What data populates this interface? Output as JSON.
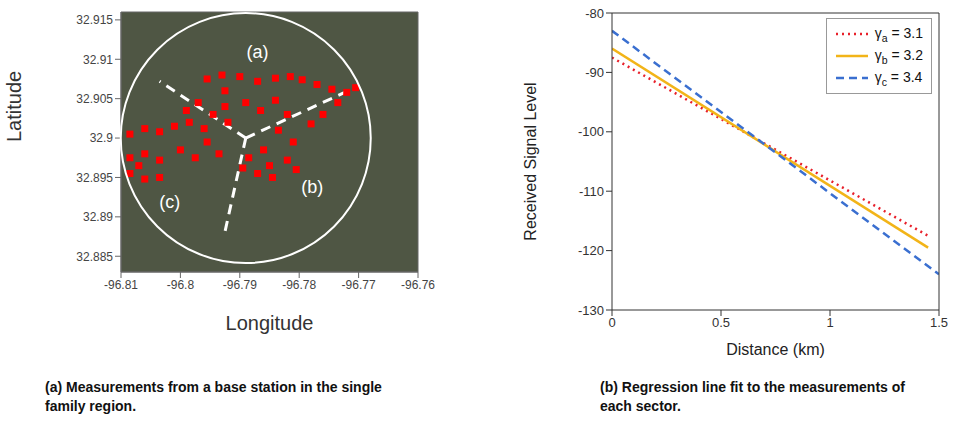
{
  "chart_data": [
    {
      "type": "scatter",
      "title": "(a) Measurements from a base station in the single family region.",
      "x_label": "Longitude",
      "y_label": "Latitude",
      "xlim": [
        -96.81,
        -96.76
      ],
      "xticks": [
        -96.81,
        -96.8,
        -96.79,
        -96.78,
        -96.77,
        -96.76
      ],
      "ylim": [
        32.883,
        32.916
      ],
      "yticks": [
        32.885,
        32.89,
        32.895,
        32.9,
        32.905,
        32.91,
        32.915
      ],
      "grid": false,
      "color": "#ff0000",
      "marker": "square",
      "x": [
        -96.7955,
        -96.793,
        -96.79,
        -96.787,
        -96.784,
        -96.7815,
        -96.7795,
        -96.777,
        -96.7745,
        -96.772,
        -96.7705,
        -96.7735,
        -96.776,
        -96.778,
        -96.7925,
        -96.7925,
        -96.792,
        -96.789,
        -96.7865,
        -96.784,
        -96.782,
        -96.7835,
        -96.781,
        -96.786,
        -96.7885,
        -96.785,
        -96.782,
        -96.7805,
        -96.7845,
        -96.787,
        -96.7895,
        -96.8085,
        -96.806,
        -96.8035,
        -96.801,
        -96.7985,
        -96.796,
        -96.7945,
        -96.797,
        -96.799,
        -96.7955,
        -96.7935,
        -96.8085,
        -96.806,
        -96.8035,
        -96.8085,
        -96.806,
        -96.8035,
        -96.807,
        -96.7975,
        -96.8
      ],
      "values": [
        32.9075,
        32.908,
        32.9078,
        32.9072,
        32.9076,
        32.9078,
        32.9074,
        32.9068,
        32.9062,
        32.9058,
        32.9064,
        32.9045,
        32.903,
        32.9018,
        32.906,
        32.904,
        32.902,
        32.9045,
        32.9035,
        32.9048,
        32.903,
        32.901,
        32.8995,
        32.8985,
        32.8975,
        32.8965,
        32.8972,
        32.896,
        32.895,
        32.8955,
        32.8962,
        32.9005,
        32.9012,
        32.9008,
        32.9015,
        32.902,
        32.9012,
        32.903,
        32.9045,
        32.9035,
        32.8995,
        32.898,
        32.8975,
        32.898,
        32.8972,
        32.8955,
        32.8948,
        32.895,
        32.8965,
        32.8975,
        32.8985
      ],
      "base_station": {
        "x": -96.789,
        "y": 32.9
      },
      "sector_boundaries": [
        [
          [
            -96.789,
            32.9
          ],
          [
            -96.8035,
            32.9072
          ]
        ],
        [
          [
            -96.789,
            32.9
          ],
          [
            -96.7706,
            32.9064
          ]
        ],
        [
          [
            -96.789,
            32.9
          ],
          [
            -96.7925,
            32.8881
          ]
        ]
      ],
      "annotations": [
        {
          "text": "(a)",
          "x": -96.787,
          "y": 32.911
        },
        {
          "text": "(b)",
          "x": -96.7778,
          "y": 32.8939
        },
        {
          "text": "(c)",
          "x": -96.8018,
          "y": 32.8919
        }
      ]
    },
    {
      "type": "line",
      "title": "(b) Regression line fit to the measurements of each sector.",
      "x_label": "Distance (km)",
      "y_label": "Received Signal Level",
      "xlim": [
        0,
        1.5
      ],
      "xticks": [
        0,
        0.5,
        1,
        1.5
      ],
      "ylim": [
        -130,
        -80
      ],
      "yticks": [
        -130,
        -120,
        -110,
        -100,
        -90,
        -80
      ],
      "grid": false,
      "legend": "upper right",
      "series": [
        {
          "name": "γa = 3.1",
          "color": "#e8202a",
          "line_style": "dotted",
          "x": [
            0,
            1.45
          ],
          "values": [
            -87.5,
            -117.5
          ]
        },
        {
          "name": "γb = 3.2",
          "color": "#f2b418",
          "line_style": "solid",
          "x": [
            0,
            1.45
          ],
          "values": [
            -86,
            -119.5
          ]
        },
        {
          "name": "γc = 3.4",
          "color": "#3a6fd0",
          "line_style": "dashed",
          "x": [
            0,
            1.5
          ],
          "values": [
            -83,
            -124
          ]
        }
      ]
    }
  ]
}
